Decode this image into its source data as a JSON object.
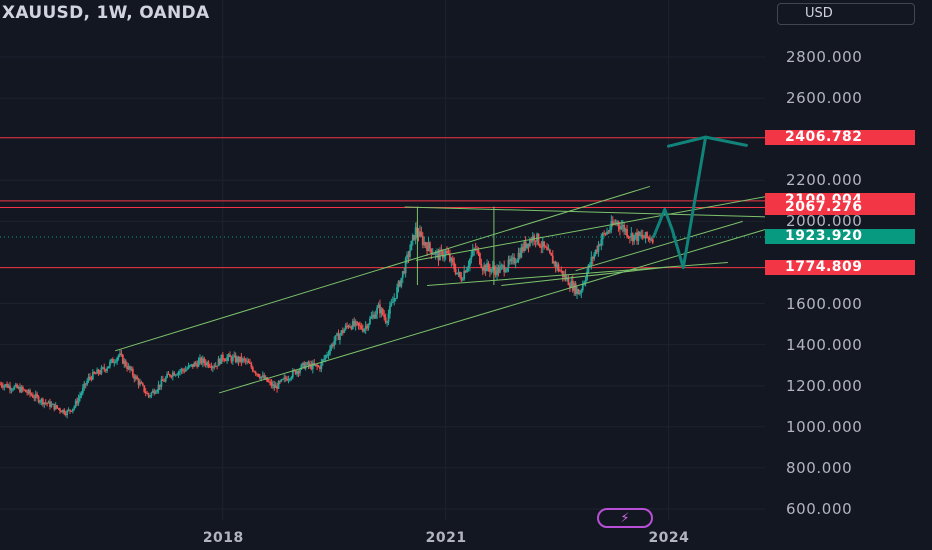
{
  "header": {
    "title": "XAUUSD, 1W, OANDA",
    "currency": "USD"
  },
  "colors": {
    "background": "#131722",
    "up": "#26a69a",
    "down": "#ef5350",
    "trendline": "#7cc26a",
    "level": "#f23645",
    "arrow": "#10847a",
    "current": "#089981"
  },
  "chart_data": {
    "type": "candlestick",
    "x_range": [
      2015.0,
      2025.3
    ],
    "ylim": [
      590,
      2920
    ],
    "y_ticks": [
      "2800.000",
      "2600.000",
      "2200.000",
      "2000.000",
      "1600.000",
      "1400.000",
      "1200.000",
      "1000.000",
      "800.000",
      "600.000"
    ],
    "x_ticks": [
      {
        "label": "2018",
        "year": 2018
      },
      {
        "label": "2021",
        "year": 2021
      },
      {
        "label": "2024",
        "year": 2024
      }
    ],
    "horizontal_levels": [
      {
        "label": "2406.782",
        "value": 2406.782
      },
      {
        "label": "2100.004",
        "value": 2100.004
      },
      {
        "label": "2067.276",
        "value": 2067.276
      },
      {
        "label": "1774.809",
        "value": 1774.809
      }
    ],
    "current_price": {
      "label": "1923.920",
      "value": 1923.92
    },
    "trendlines": [
      {
        "from": [
          2016.55,
          1370
        ],
        "to": [
          2023.75,
          2170
        ]
      },
      {
        "from": [
          2017.95,
          1165
        ],
        "to": [
          2025.3,
          1960
        ]
      },
      {
        "from": [
          2020.45,
          2070
        ],
        "to": [
          2025.3,
          2022
        ]
      },
      {
        "from": [
          2020.6,
          1810
        ],
        "to": [
          2025.3,
          2120
        ]
      },
      {
        "from": [
          2022.75,
          1760
        ],
        "to": [
          2025.0,
          2000
        ]
      },
      {
        "from": [
          2020.75,
          1688
        ],
        "to": [
          2024.8,
          1800
        ]
      },
      {
        "from": [
          2021.75,
          1688
        ],
        "to": [
          2024.0,
          1778
        ]
      },
      {
        "from": [
          2020.62,
          1690
        ],
        "to": [
          2020.62,
          2072
        ]
      },
      {
        "from": [
          2021.65,
          1690
        ],
        "to": [
          2021.65,
          2072
        ]
      }
    ],
    "projection_path": [
      [
        2023.8,
        1925
      ],
      [
        2023.95,
        2058
      ],
      [
        2024.05,
        1960
      ],
      [
        2024.2,
        1775
      ],
      [
        2024.5,
        2410
      ]
    ],
    "projection_arrowhead": [
      [
        2024.0,
        2366
      ],
      [
        2024.5,
        2410
      ],
      [
        2025.05,
        2370
      ]
    ],
    "weekly_closes_sampled": [
      [
        2015.0,
        1210
      ],
      [
        2015.3,
        1180
      ],
      [
        2015.6,
        1120
      ],
      [
        2015.9,
        1070
      ],
      [
        2016.0,
        1100
      ],
      [
        2016.2,
        1240
      ],
      [
        2016.4,
        1280
      ],
      [
        2016.6,
        1350
      ],
      [
        2016.8,
        1250
      ],
      [
        2017.0,
        1150
      ],
      [
        2017.3,
        1260
      ],
      [
        2017.5,
        1280
      ],
      [
        2017.7,
        1320
      ],
      [
        2017.9,
        1300
      ],
      [
        2018.0,
        1340
      ],
      [
        2018.3,
        1320
      ],
      [
        2018.5,
        1250
      ],
      [
        2018.7,
        1190
      ],
      [
        2018.9,
        1250
      ],
      [
        2019.1,
        1300
      ],
      [
        2019.3,
        1290
      ],
      [
        2019.5,
        1420
      ],
      [
        2019.7,
        1500
      ],
      [
        2019.9,
        1480
      ],
      [
        2020.1,
        1580
      ],
      [
        2020.2,
        1520
      ],
      [
        2020.4,
        1720
      ],
      [
        2020.6,
        1960
      ],
      [
        2020.7,
        1900
      ],
      [
        2020.9,
        1830
      ],
      [
        2021.0,
        1850
      ],
      [
        2021.2,
        1720
      ],
      [
        2021.4,
        1870
      ],
      [
        2021.5,
        1780
      ],
      [
        2021.7,
        1760
      ],
      [
        2021.9,
        1800
      ],
      [
        2022.1,
        1900
      ],
      [
        2022.2,
        1930
      ],
      [
        2022.4,
        1830
      ],
      [
        2022.6,
        1730
      ],
      [
        2022.8,
        1650
      ],
      [
        2022.95,
        1800
      ],
      [
        2023.1,
        1920
      ],
      [
        2023.3,
        2000
      ],
      [
        2023.5,
        1930
      ],
      [
        2023.7,
        1920
      ],
      [
        2023.8,
        1924
      ]
    ]
  }
}
